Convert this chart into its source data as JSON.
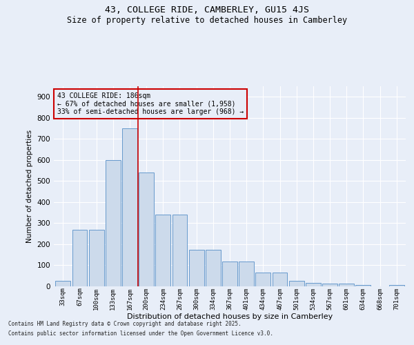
{
  "title1": "43, COLLEGE RIDE, CAMBERLEY, GU15 4JS",
  "title2": "Size of property relative to detached houses in Camberley",
  "xlabel": "Distribution of detached houses by size in Camberley",
  "ylabel": "Number of detached properties",
  "categories": [
    "33sqm",
    "67sqm",
    "100sqm",
    "133sqm",
    "167sqm",
    "200sqm",
    "234sqm",
    "267sqm",
    "300sqm",
    "334sqm",
    "367sqm",
    "401sqm",
    "434sqm",
    "467sqm",
    "501sqm",
    "534sqm",
    "567sqm",
    "601sqm",
    "634sqm",
    "668sqm",
    "701sqm"
  ],
  "values": [
    25,
    270,
    270,
    600,
    750,
    540,
    340,
    340,
    175,
    175,
    118,
    118,
    65,
    65,
    25,
    18,
    12,
    12,
    5,
    0,
    8
  ],
  "bar_color": "#ccdaeb",
  "bar_edge_color": "#6699cc",
  "vline_x": 4.5,
  "vline_color": "#cc0000",
  "annotation_text": "43 COLLEGE RIDE: 186sqm\n← 67% of detached houses are smaller (1,958)\n33% of semi-detached houses are larger (968) →",
  "annotation_box_color": "#cc0000",
  "ylim": [
    0,
    950
  ],
  "yticks": [
    0,
    100,
    200,
    300,
    400,
    500,
    600,
    700,
    800,
    900
  ],
  "footnote1": "Contains HM Land Registry data © Crown copyright and database right 2025.",
  "footnote2": "Contains public sector information licensed under the Open Government Licence v3.0.",
  "bg_color": "#e8eef8"
}
